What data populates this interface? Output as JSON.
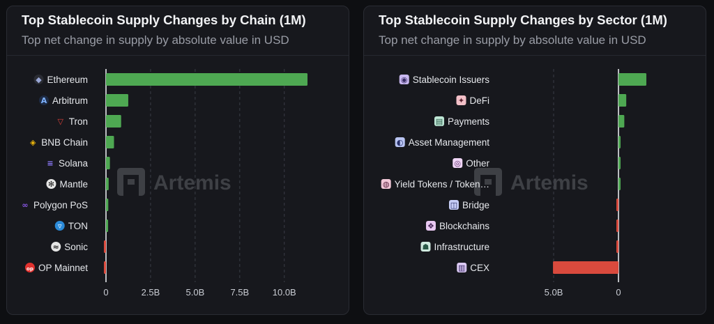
{
  "colors": {
    "positive": "#4ea852",
    "negative": "#d94a3d",
    "grid": "#3a3d46",
    "axis": "#e6e8ec"
  },
  "watermark": "Artemis",
  "chart_data": [
    {
      "type": "bar",
      "orientation": "horizontal",
      "title": "Top Stablecoin Supply Changes by Chain (1M)",
      "subtitle": "Top net change in supply by absolute value in USD",
      "categories": [
        "Ethereum",
        "Arbitrum",
        "Tron",
        "BNB Chain",
        "Solana",
        "Mantle",
        "Polygon PoS",
        "TON",
        "Sonic",
        "OP Mainnet"
      ],
      "icons": [
        "ethereum-icon",
        "arbitrum-icon",
        "tron-icon",
        "bnb-chain-icon",
        "solana-icon",
        "mantle-icon",
        "polygon-icon",
        "ton-icon",
        "sonic-icon",
        "op-mainnet-icon"
      ],
      "values": [
        11.3,
        1.25,
        0.85,
        0.45,
        0.22,
        0.15,
        0.13,
        0.12,
        -0.1,
        -0.08
      ],
      "xlim": [
        0,
        11.3
      ],
      "xticks": [
        0,
        2.5,
        5.0,
        7.5,
        10.0
      ],
      "xtick_labels": [
        "0",
        "2.5B",
        "5.0B",
        "7.5B",
        "10.0B"
      ],
      "grid": true
    },
    {
      "type": "bar",
      "orientation": "horizontal",
      "title": "Top Stablecoin Supply Changes by Sector (1M)",
      "subtitle": "Top net change in supply by absolute value in USD",
      "categories": [
        "Stablecoin Issuers",
        "DeFi",
        "Payments",
        "Asset Management",
        "Other",
        "Yield Tokens / Token…",
        "Bridge",
        "Blockchains",
        "Infrastructure",
        "CEX"
      ],
      "icons": [
        "stablecoin-issuers-icon",
        "defi-icon",
        "payments-icon",
        "asset-management-icon",
        "other-icon",
        "yield-tokens-icon",
        "bridge-icon",
        "blockchains-icon",
        "infrastructure-icon",
        "cex-icon"
      ],
      "values": [
        2.15,
        0.6,
        0.45,
        0.1,
        0.09,
        0.09,
        -0.12,
        -0.13,
        -0.15,
        -5.05
      ],
      "xticks": [
        -5.0,
        0
      ],
      "xtick_labels": [
        "5.0B",
        "0"
      ],
      "grid": true
    }
  ]
}
